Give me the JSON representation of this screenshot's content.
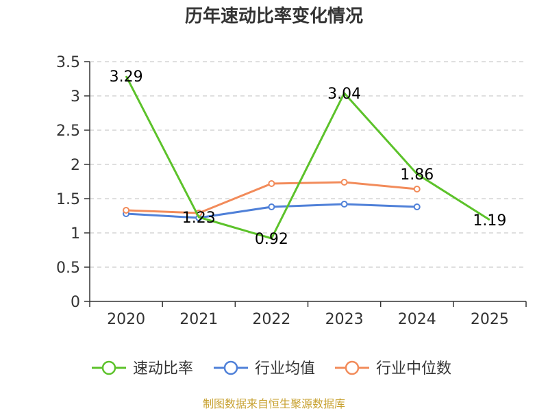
{
  "chart_data": {
    "type": "line",
    "title": "历年速动比率变化情况",
    "categories": [
      "2020",
      "2021",
      "2022",
      "2023",
      "2024",
      "2025"
    ],
    "ylim": [
      0,
      3.5
    ],
    "yticks": [
      "0",
      "0.5",
      "1",
      "1.5",
      "2",
      "2.5",
      "3",
      "3.5"
    ],
    "grid": true,
    "legend_position": "bottom",
    "series": [
      {
        "name": "速动比率",
        "color": "#5cc22a",
        "values": [
          3.29,
          1.23,
          0.92,
          3.04,
          1.86,
          1.19
        ],
        "labels": [
          "3.29",
          "1.23",
          "0.92",
          "3.04",
          "1.86",
          "1.19"
        ],
        "show_labels": true,
        "markers": false
      },
      {
        "name": "行业均值",
        "color": "#4f80d8",
        "values": [
          1.28,
          1.22,
          1.38,
          1.42,
          1.38,
          null
        ],
        "show_labels": false,
        "markers": true
      },
      {
        "name": "行业中位数",
        "color": "#f28b5a",
        "values": [
          1.33,
          1.29,
          1.72,
          1.74,
          1.64,
          null
        ],
        "show_labels": false,
        "markers": true
      }
    ]
  },
  "source": "制图数据来自恒生聚源数据库"
}
